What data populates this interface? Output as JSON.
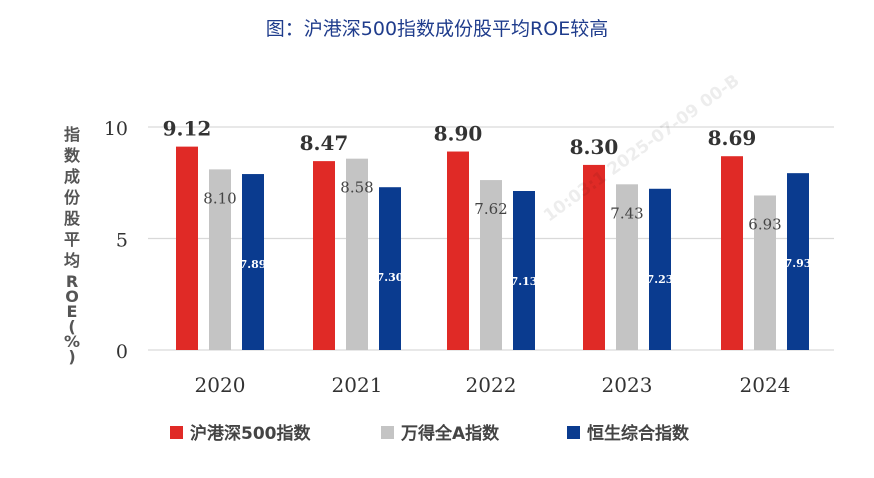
{
  "title": "图：沪港深500指数成份股平均ROE较高",
  "watermark": "10:03:1  2025-07-09  00-B",
  "colors": {
    "title": "#1f3c8c",
    "grid": "#d9d9d9",
    "axis_text": "#333333"
  },
  "chart_data": {
    "type": "bar",
    "title": "图：沪港深500指数成份股平均ROE较高",
    "ylabel": "指数成份股平均ROE(%)",
    "xlabel": "",
    "ylim": [
      0,
      10
    ],
    "yticks": [
      "0",
      "5",
      "10"
    ],
    "grid": true,
    "legend_position": "bottom",
    "categories": [
      "2020",
      "2021",
      "2022",
      "2023",
      "2024"
    ],
    "series": [
      {
        "name": "沪港深500指数",
        "color": "#e02a26",
        "label_color": "#333333",
        "values": [
          9.12,
          8.47,
          8.9,
          8.3,
          8.69
        ],
        "labels": [
          "9.12",
          "8.47",
          "8.90",
          "8.30",
          "8.69"
        ]
      },
      {
        "name": "万得全A指数",
        "color": "#c4c4c4",
        "label_color": "#444444",
        "values": [
          8.1,
          8.58,
          7.62,
          7.43,
          6.93
        ],
        "labels": [
          "8.10",
          "8.58",
          "7.62",
          "7.43",
          "6.93"
        ]
      },
      {
        "name": "恒生综合指数",
        "color": "#0a3b8f",
        "label_color": "#ffffff",
        "values": [
          7.89,
          7.3,
          7.13,
          7.23,
          7.93
        ],
        "labels": [
          "7.89",
          "7.30",
          "7.13",
          "7.23",
          "7.93"
        ]
      }
    ]
  }
}
